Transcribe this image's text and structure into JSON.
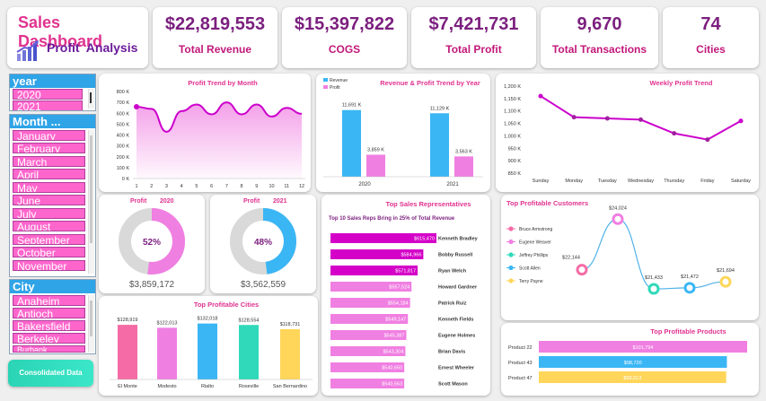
{
  "header": {
    "title": "Sales Dashboard",
    "subtitle": "Profit  Analysis",
    "icon": "bar-chart-growth-icon"
  },
  "kpis": [
    {
      "value": "$22,819,553",
      "label": "Total Revenue"
    },
    {
      "value": "$15,397,822",
      "label": "COGS"
    },
    {
      "value": "$7,421,731",
      "label": "Total Profit"
    },
    {
      "value": "9,670",
      "label": "Total Transactions"
    },
    {
      "value": "74",
      "label": "Cities"
    }
  ],
  "slicers": {
    "year": {
      "title": "year",
      "items": [
        "2020",
        "2021"
      ]
    },
    "month": {
      "title": "Month ...",
      "items": [
        "January",
        "February",
        "March",
        "April",
        "May",
        "June",
        "July",
        "August",
        "September",
        "October",
        "November"
      ]
    },
    "city": {
      "title": "City",
      "items": [
        "Anaheim",
        "Antioch",
        "Bakersfield",
        "Berkeley",
        "Burbank"
      ]
    }
  },
  "buttons": {
    "consolidated": "Consolidated Data"
  },
  "colors": {
    "accent": "#cc00cc",
    "blue": "#3bb6f5",
    "pink": "#f07fe2",
    "grey": "#d9d9d9"
  },
  "chart_data": [
    {
      "id": "profit_by_month",
      "type": "area",
      "title": "Profit Trend by Month",
      "x": [
        1,
        2,
        3,
        4,
        5,
        6,
        7,
        8,
        9,
        10,
        11,
        12
      ],
      "y": [
        660,
        640,
        430,
        620,
        680,
        590,
        700,
        590,
        680,
        570,
        650,
        595
      ],
      "ylim": [
        0,
        800
      ],
      "yticks": [
        "0 K",
        "100 K",
        "200 K",
        "300 K",
        "400 K",
        "500 K",
        "600 K",
        "700 K",
        "800 K"
      ]
    },
    {
      "id": "revenue_profit_by_year",
      "type": "bar",
      "title": "Revenue & Profit Trend by Year",
      "categories": [
        "2020",
        "2021"
      ],
      "series": [
        {
          "name": "Revenue",
          "values": [
            11691,
            11129
          ],
          "labels": [
            "11,691 K",
            "11,129 K"
          ]
        },
        {
          "name": "Profit",
          "values": [
            3859,
            3563
          ],
          "labels": [
            "3,859 K",
            "3,563 K"
          ]
        }
      ],
      "ylim": [
        0,
        14000
      ]
    },
    {
      "id": "weekly_profit",
      "type": "line",
      "title": "Weekly Profit Trend",
      "categories": [
        "Sunday",
        "Monday",
        "Tuesday",
        "Wednesday",
        "Thursday",
        "Friday",
        "Saturday"
      ],
      "values": [
        1160,
        1075,
        1070,
        1065,
        1010,
        985,
        1060
      ],
      "ylim": [
        850,
        1200
      ],
      "yticks": [
        "850 K",
        "900 K",
        "950 K",
        "1,000 K",
        "1,050 K",
        "1,100 K",
        "1,150 K",
        "1,200 K"
      ]
    },
    {
      "id": "profit_2020_donut",
      "type": "pie",
      "label": "Profit",
      "year": "2020",
      "percent": 52,
      "percent_text": "52%",
      "total": "$3,859,172"
    },
    {
      "id": "profit_2021_donut",
      "type": "pie",
      "label": "Profit",
      "year": "2021",
      "percent": 48,
      "percent_text": "48%",
      "total": "$3,562,559"
    },
    {
      "id": "top_sales_reps",
      "type": "bar",
      "title": "Top Sales Representatives",
      "subtitle": "Top 10 Sales Reps Bring in 25% of Total Revenue",
      "categories": [
        "Kenneth Bradley",
        "Bobby Russell",
        "Ryan Welch",
        "Howard Gardner",
        "Patrick Ruiz",
        "Kenneth Fields",
        "Eugene Holmes",
        "Brian Davis",
        "Ernest Wheeler",
        "Scott Mason"
      ],
      "values": [
        615470,
        584966,
        571817,
        557524,
        554184,
        549147,
        545387,
        543304,
        540650,
        540563
      ],
      "labels": [
        "$615,470",
        "$584,966",
        "$571,817",
        "$557,524",
        "$554,184",
        "$549,147",
        "$545,387",
        "$543,304",
        "$540,650",
        "$540,563"
      ]
    },
    {
      "id": "top_cities",
      "type": "bar",
      "title": "Top Profitable Cities",
      "categories": [
        "El Monte",
        "Modesto",
        "Rialto",
        "Roseville",
        "San Bernardino"
      ],
      "values": [
        128919,
        122013,
        132018,
        128554,
        118731
      ],
      "labels": [
        "$128,919",
        "$122,013",
        "$132,018",
        "$128,554",
        "$118,731"
      ],
      "colors": [
        "#f56ba6",
        "#f07fe2",
        "#3bb6f5",
        "#2fd9b9",
        "#ffd65a"
      ]
    },
    {
      "id": "top_customers",
      "type": "line",
      "title": "Top Profitable Customers",
      "categories": [
        "Bruce Armstrong",
        "Eugene Weaver",
        "Jeffrey Phillips",
        "Scott Allen",
        "Terry Payne"
      ],
      "values": [
        22144,
        24024,
        21433,
        21472,
        21694
      ],
      "labels": [
        "$22,144",
        "$24,024",
        "$21,433",
        "$21,472",
        "$21,694"
      ],
      "colors": [
        "#f56ba6",
        "#f07fe2",
        "#2fd9b9",
        "#3bb6f5",
        "#ffd65a"
      ]
    },
    {
      "id": "top_products",
      "type": "bar",
      "title": "Top Profitable Products",
      "categories": [
        "Product 22",
        "Product 43",
        "Product 47"
      ],
      "values": [
        101794,
        98720,
        98613
      ],
      "labels": [
        "$101,794",
        "$98,720",
        "$98,613"
      ],
      "colors": [
        "#f07fe2",
        "#3bb6f5",
        "#ffd65a"
      ]
    }
  ]
}
